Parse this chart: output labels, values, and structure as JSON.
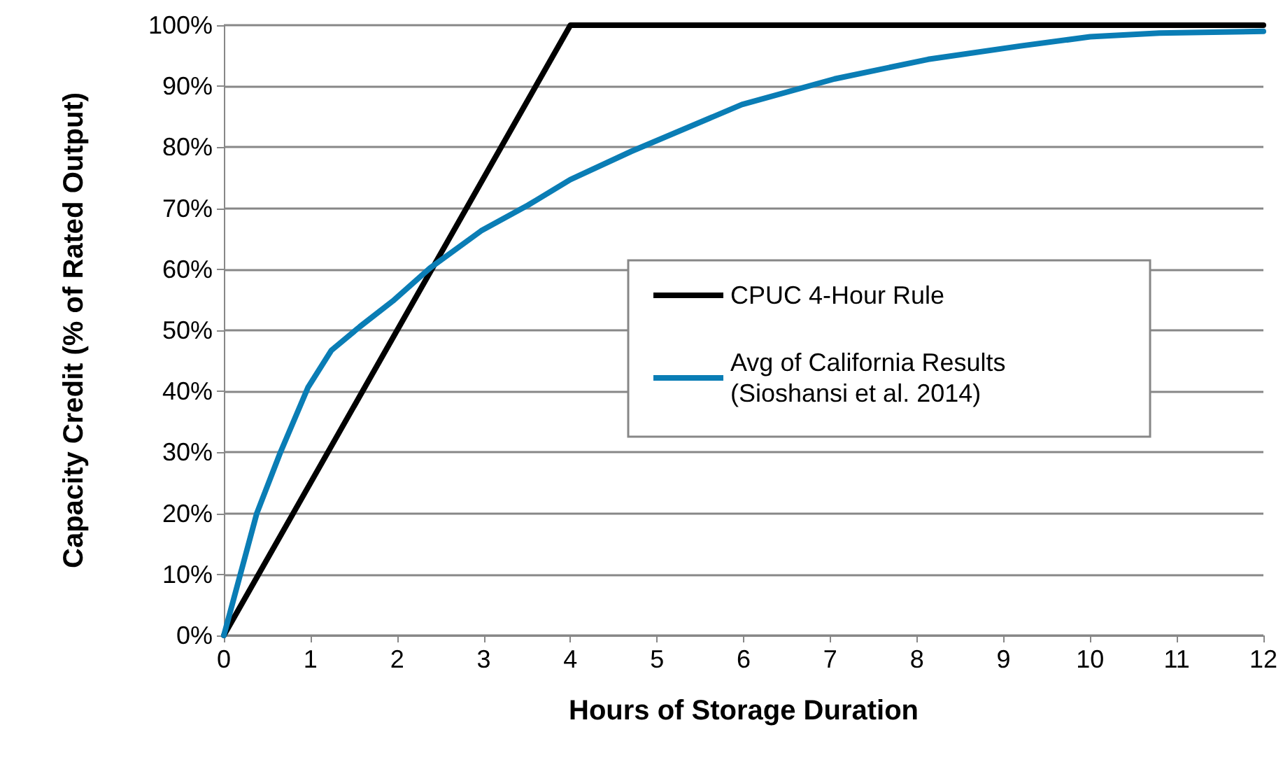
{
  "chart_data": {
    "type": "line",
    "xlabel": "Hours of Storage Duration",
    "ylabel": "Capacity Credit (% of Rated Output)",
    "xlim": [
      0,
      12
    ],
    "xticks": [
      0,
      1,
      2,
      3,
      4,
      5,
      6,
      7,
      8,
      9,
      10,
      11,
      12
    ],
    "ylim": [
      0,
      100
    ],
    "yticks": [
      {
        "value": 0,
        "label": "0%"
      },
      {
        "value": 10,
        "label": "10%"
      },
      {
        "value": 20,
        "label": "20%"
      },
      {
        "value": 30,
        "label": "30%"
      },
      {
        "value": 40,
        "label": "40%"
      },
      {
        "value": 50,
        "label": "50%"
      },
      {
        "value": 60,
        "label": "60%"
      },
      {
        "value": 70,
        "label": "70%"
      },
      {
        "value": 80,
        "label": "80%"
      },
      {
        "value": 90,
        "label": "90%"
      },
      {
        "value": 100,
        "label": "100%"
      }
    ],
    "grid": "y",
    "legend": "right",
    "marker": "none",
    "line_style": "solid",
    "series": [
      {
        "name": "CPUC 4-Hour Rule",
        "color": "#000000",
        "x": [
          0,
          4,
          12
        ],
        "values": [
          0,
          100,
          100
        ]
      },
      {
        "name": "Avg of California Results (Sioshansi et al. 2014)",
        "color": "#0a7db5",
        "x": [
          0,
          0.38,
          0.65,
          0.97,
          1.24,
          1.57,
          1.95,
          2.38,
          2.97,
          3.51,
          4.0,
          4.7,
          5.98,
          7.05,
          8.13,
          9.2,
          10.0,
          10.8,
          12
        ],
        "values": [
          0,
          20,
          29.9,
          40.6,
          46.7,
          50.6,
          54.8,
          60.2,
          66.3,
          70.5,
          74.7,
          79.3,
          87.0,
          91.2,
          94.4,
          96.6,
          98.1,
          98.7,
          99.0
        ]
      }
    ]
  }
}
